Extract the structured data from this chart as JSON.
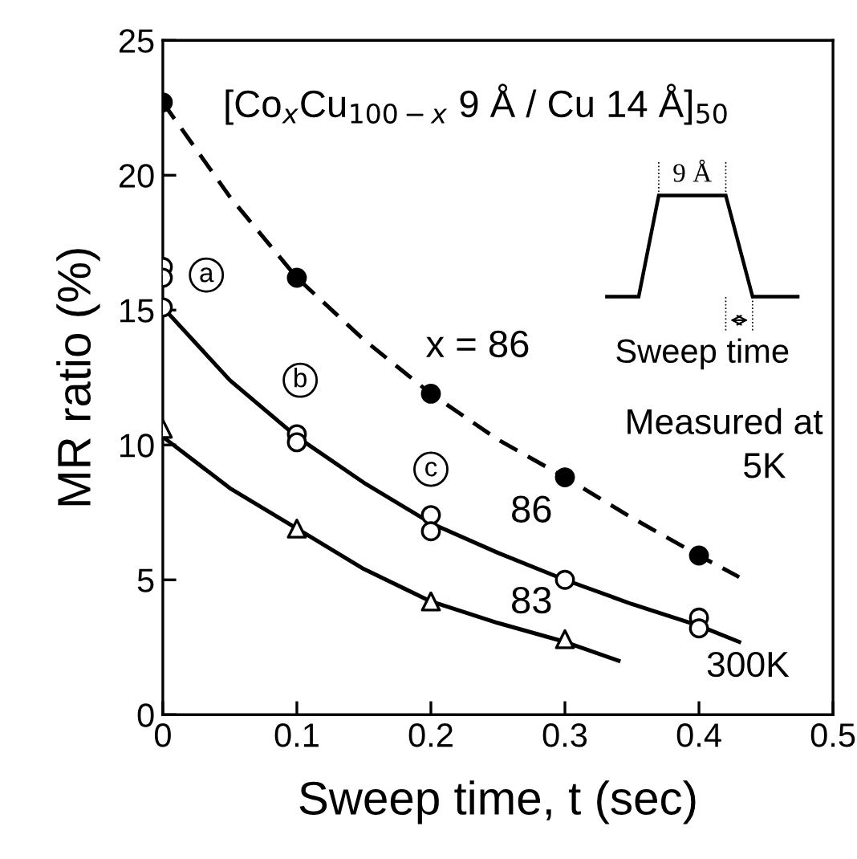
{
  "chart_data": {
    "type": "scatter",
    "xlabel": "Sweep time, t (sec)",
    "ylabel": "MR ratio (%)",
    "xlim": [
      0,
      0.5
    ],
    "xticks": [
      0,
      0.1,
      0.2,
      0.3,
      0.4,
      0.5
    ],
    "ylim": [
      0,
      25
    ],
    "yticks": [
      0,
      5,
      10,
      15,
      20,
      25
    ],
    "grid": false,
    "legend": false,
    "series": [
      {
        "type": "line",
        "line_style": "dashed",
        "marker": "none",
        "color": "#000000",
        "x": [
          0,
          0.05,
          0.1,
          0.15,
          0.2,
          0.25,
          0.3,
          0.35,
          0.4,
          0.43
        ],
        "values": [
          22.7,
          19.2,
          16.2,
          13.9,
          11.9,
          10.2,
          8.8,
          7.3,
          5.9,
          5.1
        ]
      },
      {
        "type": "line",
        "line_style": "solid",
        "marker": "none",
        "color": "#000000",
        "x": [
          0,
          0.05,
          0.1,
          0.15,
          0.2,
          0.25,
          0.3,
          0.35,
          0.4,
          0.43
        ],
        "values": [
          15.1,
          12.4,
          10.3,
          8.6,
          7.1,
          6.0,
          5.0,
          4.1,
          3.3,
          2.7
        ]
      },
      {
        "type": "line",
        "line_style": "solid",
        "marker": "none",
        "color": "#000000",
        "x": [
          0,
          0.05,
          0.1,
          0.15,
          0.2,
          0.25,
          0.3,
          0.34
        ],
        "values": [
          10.3,
          8.4,
          6.9,
          5.4,
          4.2,
          3.4,
          2.7,
          2.0
        ]
      },
      {
        "marker": "circle",
        "color": "#000000",
        "x": [
          0,
          0.1,
          0.2,
          0.3,
          0.4
        ],
        "values": [
          22.7,
          16.2,
          11.9,
          8.8,
          5.9
        ]
      },
      {
        "marker": "circle",
        "color": "#ffffff",
        "x": [
          0,
          0,
          0,
          0.1,
          0.1,
          0.2,
          0.2,
          0.3,
          0.4,
          0.4
        ],
        "values": [
          16.6,
          16.2,
          15.1,
          10.4,
          10.1,
          7.4,
          6.8,
          5.0,
          3.6,
          3.2
        ]
      },
      {
        "marker": "triangle",
        "color": "#ffffff",
        "x": [
          0,
          0.1,
          0.2,
          0.3
        ],
        "values": [
          10.6,
          6.9,
          4.2,
          2.8
        ]
      }
    ],
    "annotations": [
      "[Co$_{x}$Cu$_{100−x}$ 9 Å / Cu 14 Å]$_{50}$",
      "a",
      "b",
      "c",
      "x = 86",
      "86",
      "83",
      "Measured at",
      "5K",
      "300K",
      "9 Å",
      "Sweep time"
    ]
  }
}
